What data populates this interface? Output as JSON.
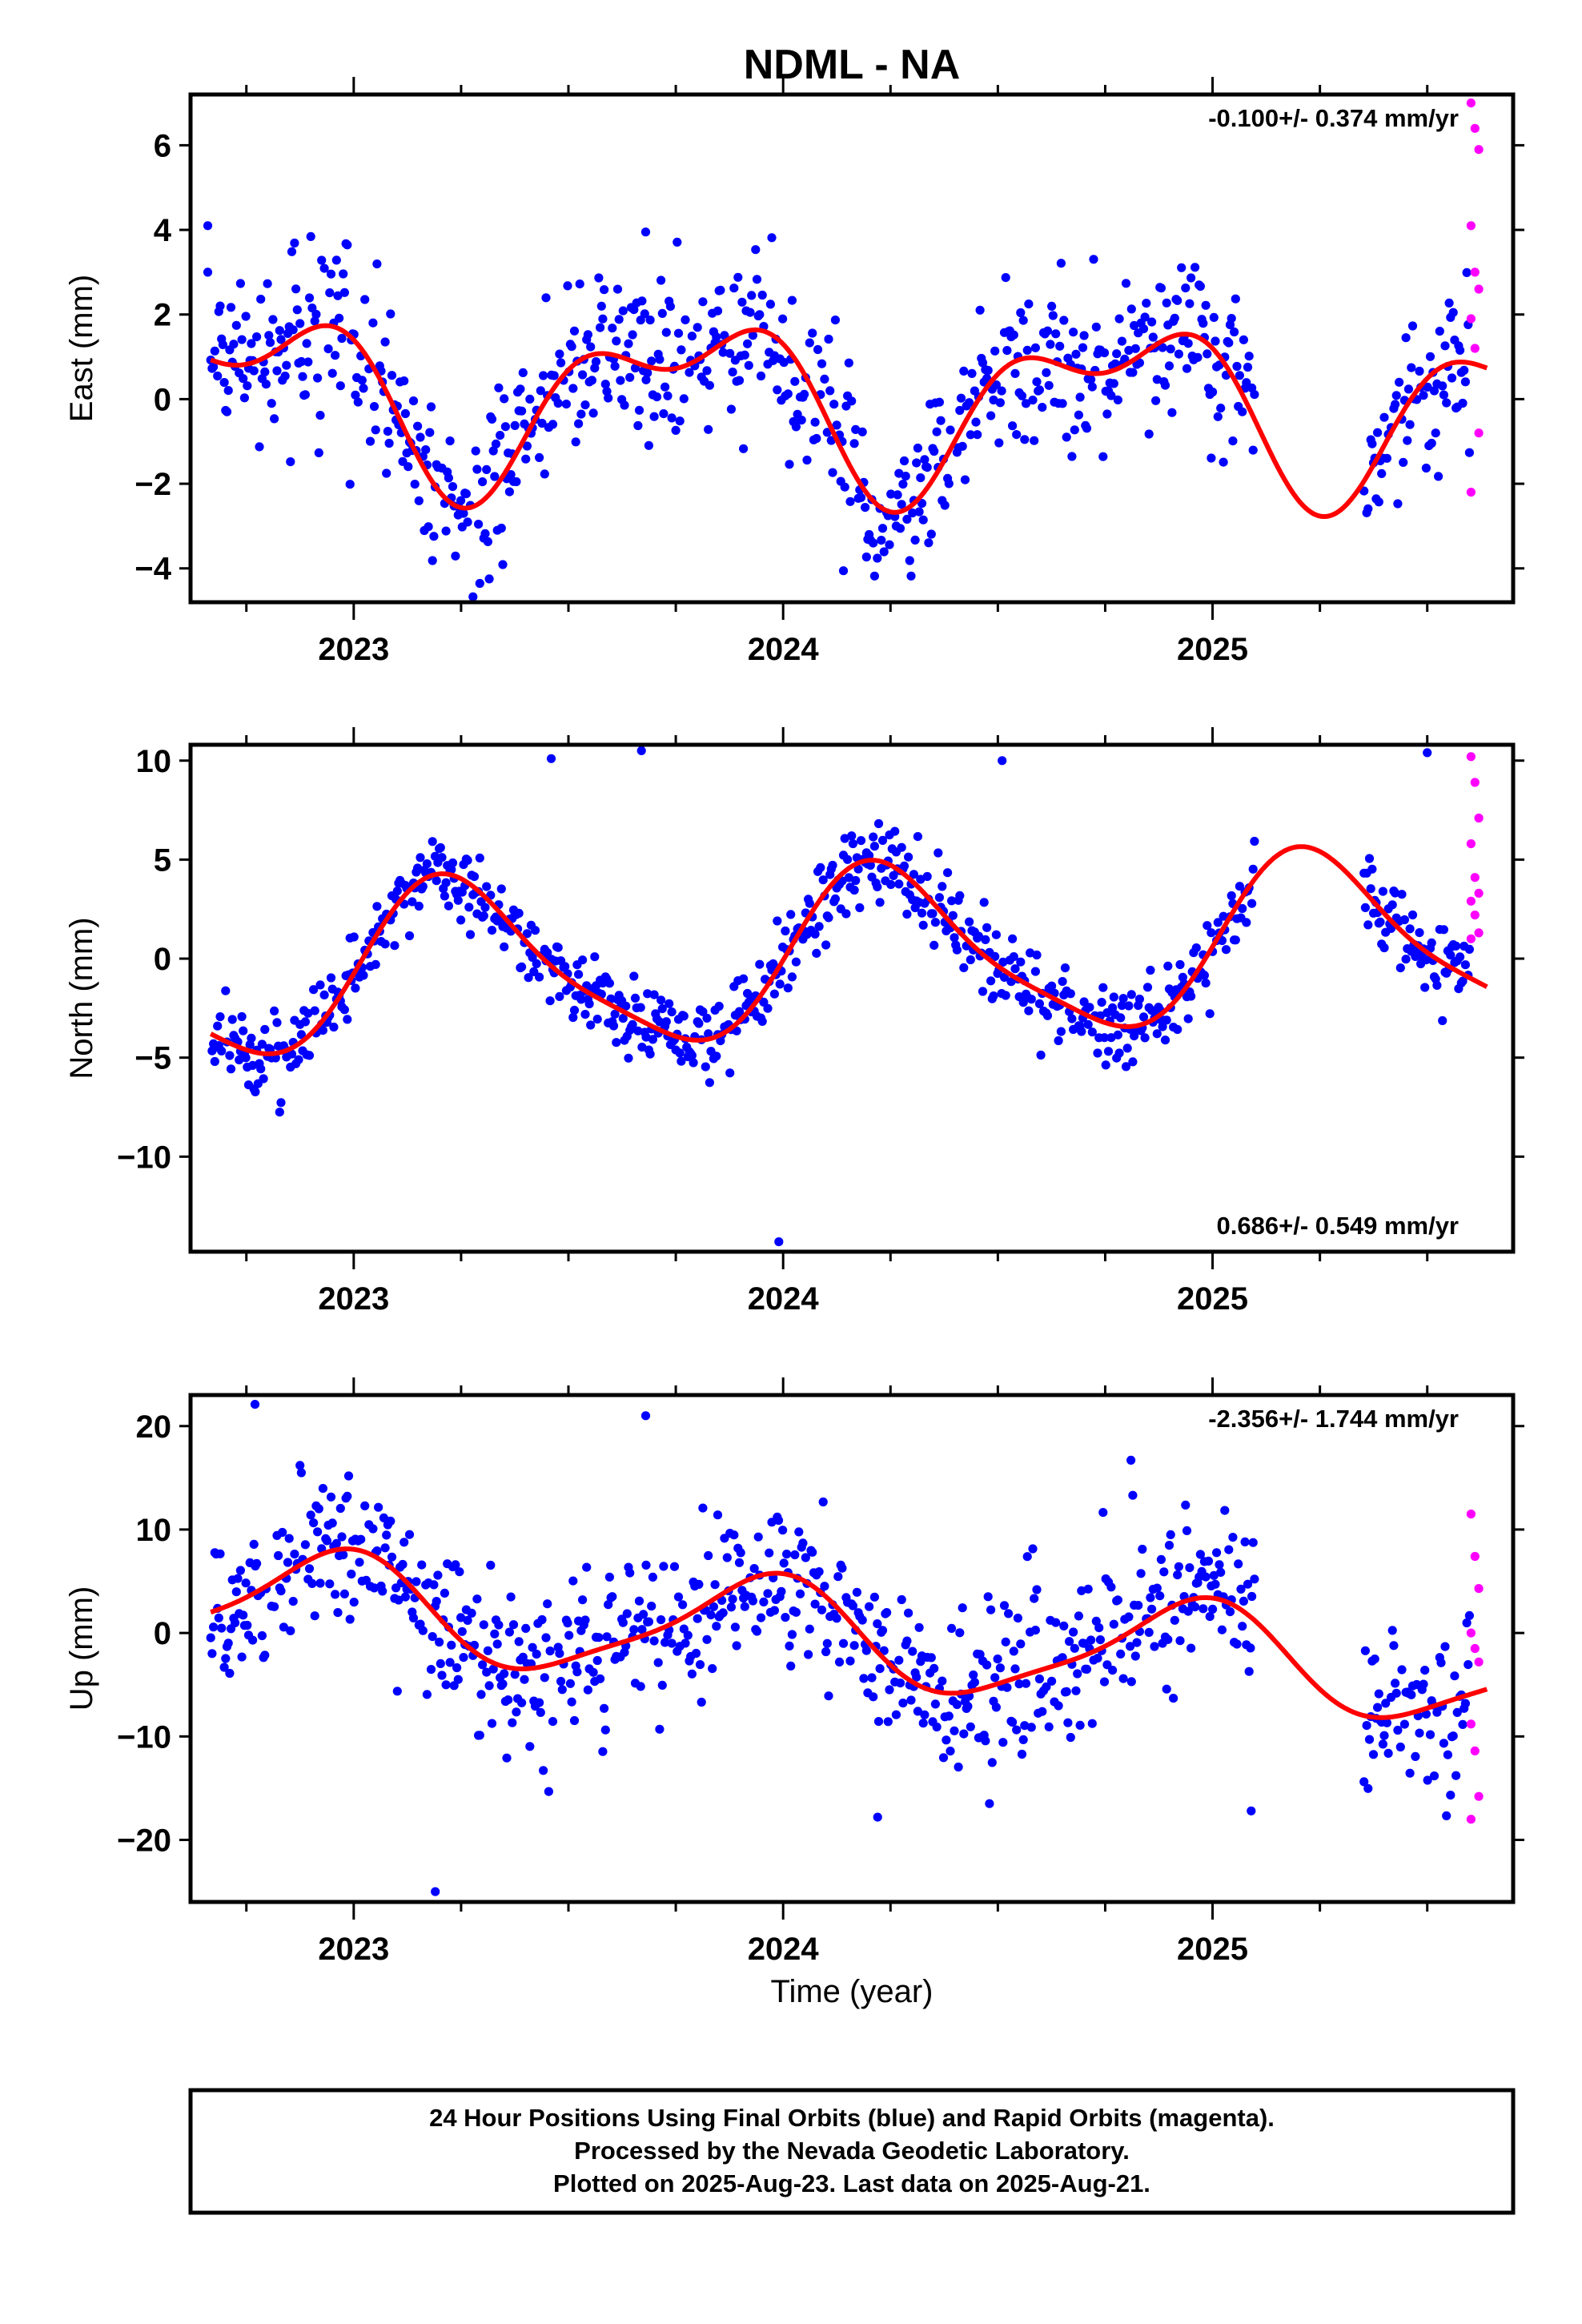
{
  "chart_data": [
    {
      "type": "scatter",
      "panel": "east",
      "title": "NDML - NA",
      "ylabel": "East (mm)",
      "xlabel": "",
      "rate_label": "-0.100+/- 0.374 mm/yr",
      "rate_position": "top-right",
      "xlim": [
        2022.62,
        2025.7
      ],
      "ylim": [
        -4.8,
        7.2
      ],
      "yticks": [
        -4,
        -2,
        0,
        2,
        4,
        6
      ],
      "xticks": [
        2023,
        2024,
        2025
      ],
      "fit": {
        "offset": 0.0,
        "trend": -0.1,
        "ann_s": -1.67,
        "ann_c": 0.33,
        "semi_s": 0.0,
        "semi_c": 0.97
      },
      "noise": 1.0,
      "gap": [
        2025.1,
        2025.35
      ],
      "rapid_start": 2025.6,
      "rapid_values": [
        7.0,
        6.4,
        5.9,
        4.1,
        3.0,
        2.6,
        1.9,
        1.2,
        -0.8,
        -2.2
      ],
      "outliers": [
        [
          2022.66,
          4.1
        ],
        [
          2022.66,
          3.0
        ],
        [
          2023.68,
          3.95
        ]
      ],
      "series": [
        {
          "name": "Final Orbits",
          "color": "#0000ff"
        },
        {
          "name": "Rapid Orbits",
          "color": "#ff00ff"
        }
      ],
      "fit_color": "#ff0000"
    },
    {
      "type": "scatter",
      "panel": "north",
      "title": "",
      "ylabel": "North (mm)",
      "xlabel": "",
      "rate_label": "0.686+/- 0.549 mm/yr",
      "rate_position": "bottom-right",
      "xlim": [
        2022.62,
        2025.7
      ],
      "ylim": [
        -14.8,
        10.8
      ],
      "yticks": [
        -10,
        -5,
        0,
        5,
        10
      ],
      "xticks": [
        2023,
        2024,
        2025
      ],
      "fit": {
        "offset": 0.0,
        "trend": 0.686,
        "ann_s": 4.15,
        "ann_c": 0.32,
        "semi_s": 0.78,
        "semi_c": -0.4
      },
      "noise": 1.0,
      "gap": [
        2025.1,
        2025.35
      ],
      "rapid_start": 2025.6,
      "rapid_values": [
        10.2,
        8.9,
        7.1,
        5.8,
        4.1,
        3.3,
        2.9,
        2.2,
        1.3,
        1.0
      ],
      "outliers": [
        [
          2023.46,
          10.1
        ],
        [
          2023.67,
          10.5
        ],
        [
          2023.99,
          -14.3
        ],
        [
          2024.51,
          10.0
        ],
        [
          2025.5,
          10.4
        ]
      ],
      "series": [
        {
          "name": "Final Orbits",
          "color": "#0000ff"
        },
        {
          "name": "Rapid Orbits",
          "color": "#ff00ff"
        }
      ],
      "fit_color": "#ff0000"
    },
    {
      "type": "scatter",
      "panel": "up",
      "title": "",
      "ylabel": "Up (mm)",
      "xlabel": "Time (year)",
      "rate_label": "-2.356+/- 1.744 mm/yr",
      "rate_position": "top-right",
      "xlim": [
        2022.62,
        2025.7
      ],
      "ylim": [
        -26.0,
        23.0
      ],
      "yticks": [
        -20,
        -10,
        0,
        10,
        20
      ],
      "xticks": [
        2023,
        2024,
        2025
      ],
      "fit": {
        "offset": 0.0,
        "trend": -2.356,
        "ann_s": -1.5,
        "ann_c": 4.73,
        "semi_s": 0.5,
        "semi_c": 1.0
      },
      "noise": 4.0,
      "gap": [
        2025.1,
        2025.35
      ],
      "rapid_start": 2025.6,
      "rapid_values": [
        11.5,
        7.4,
        4.3,
        0.0,
        -1.5,
        -2.8,
        -8.8,
        -11.4,
        -15.8,
        -18.0
      ],
      "outliers": [
        [
          2022.77,
          22.1
        ],
        [
          2023.19,
          -25.0
        ],
        [
          2023.68,
          21.0
        ],
        [
          2024.22,
          -17.8
        ],
        [
          2024.81,
          16.7
        ],
        [
          2025.09,
          -17.2
        ]
      ],
      "series": [
        {
          "name": "Final Orbits",
          "color": "#0000ff"
        },
        {
          "name": "Rapid Orbits",
          "color": "#ff00ff"
        }
      ],
      "fit_color": "#ff0000"
    }
  ],
  "footer": {
    "line1": "24 Hour Positions Using Final Orbits (blue) and Rapid Orbits (magenta).",
    "line2": "Processed by the Nevada Geodetic Laboratory.",
    "line3": "Plotted on 2025-Aug-23. Last data on 2025-Aug-21."
  }
}
